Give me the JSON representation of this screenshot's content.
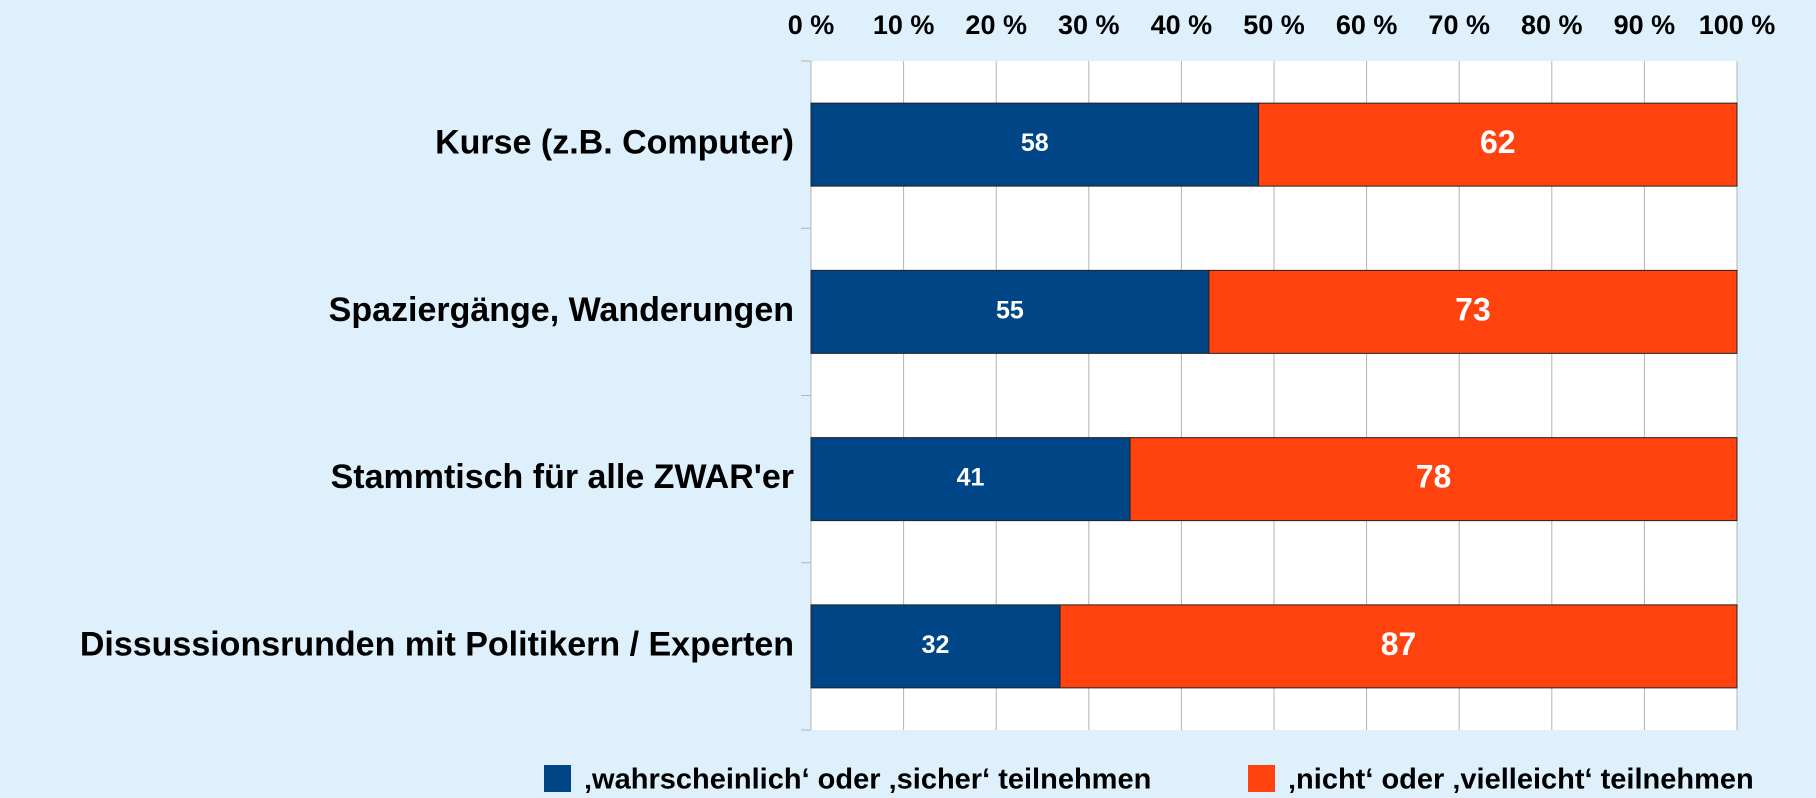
{
  "chart_data": {
    "type": "bar",
    "orientation": "horizontal",
    "stack": "percent",
    "categories": [
      "Kurse (z.B. Computer)",
      "Spaziergänge, Wanderungen",
      "Stammtisch für alle ZWAR'er",
      "Dissussionsrunden mit Politikern / Experten"
    ],
    "series": [
      {
        "name": "‚wahrscheinlich‘ oder ‚sicher‘ teilnehmen",
        "color": "#004586",
        "values": [
          58,
          55,
          41,
          32
        ]
      },
      {
        "name": "‚nicht‘ oder ‚vielleicht‘ teilnehmen",
        "color": "#ff420e",
        "values": [
          62,
          73,
          78,
          87
        ]
      }
    ],
    "xlim": [
      0,
      100
    ],
    "xticks": [
      {
        "value": 0,
        "label": "0 %"
      },
      {
        "value": 10,
        "label": "10 %"
      },
      {
        "value": 20,
        "label": "20 %"
      },
      {
        "value": 30,
        "label": "30 %"
      },
      {
        "value": 40,
        "label": "40 %"
      },
      {
        "value": 50,
        "label": "50 %"
      },
      {
        "value": 60,
        "label": "60 %"
      },
      {
        "value": 70,
        "label": "70 %"
      },
      {
        "value": 80,
        "label": "80 %"
      },
      {
        "value": 90,
        "label": "90 %"
      },
      {
        "value": 100,
        "label": "100 %"
      }
    ],
    "grid": true,
    "legend": "bottom"
  }
}
